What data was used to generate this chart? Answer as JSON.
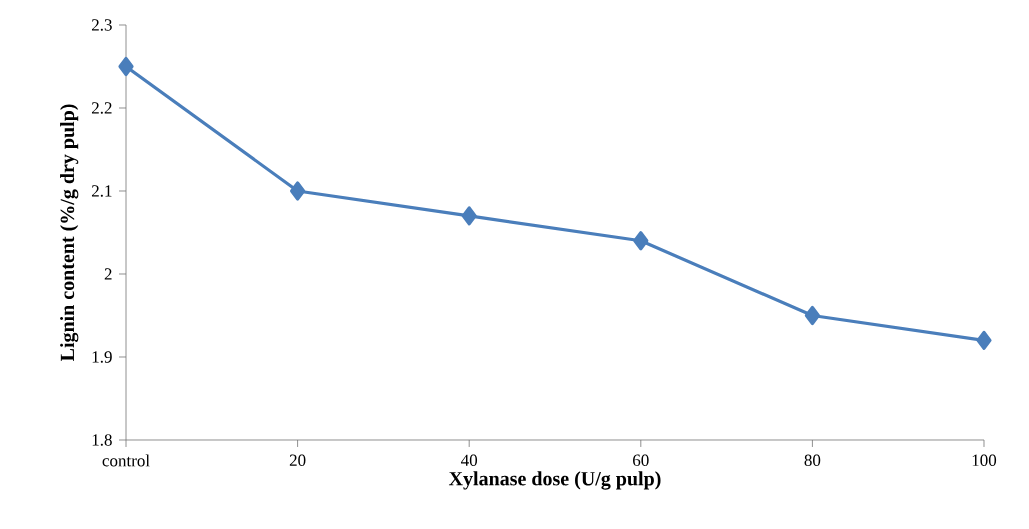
{
  "chart_data": {
    "type": "line",
    "xlabel": "Xylanase dose (U/g pulp)",
    "ylabel": "Lignin content (%/g dry pulp)",
    "categories": [
      "control",
      "20",
      "40",
      "60",
      "80",
      "100"
    ],
    "series": [
      {
        "color": "#4a7ebb",
        "values": [
          2.25,
          2.1,
          2.07,
          2.04,
          1.95,
          1.92
        ]
      }
    ],
    "ylim": [
      1.8,
      2.3
    ],
    "yticks": [
      1.8,
      1.9,
      2,
      2.1,
      2.2,
      2.3
    ],
    "marker": "diamond",
    "line_style": "solid"
  }
}
